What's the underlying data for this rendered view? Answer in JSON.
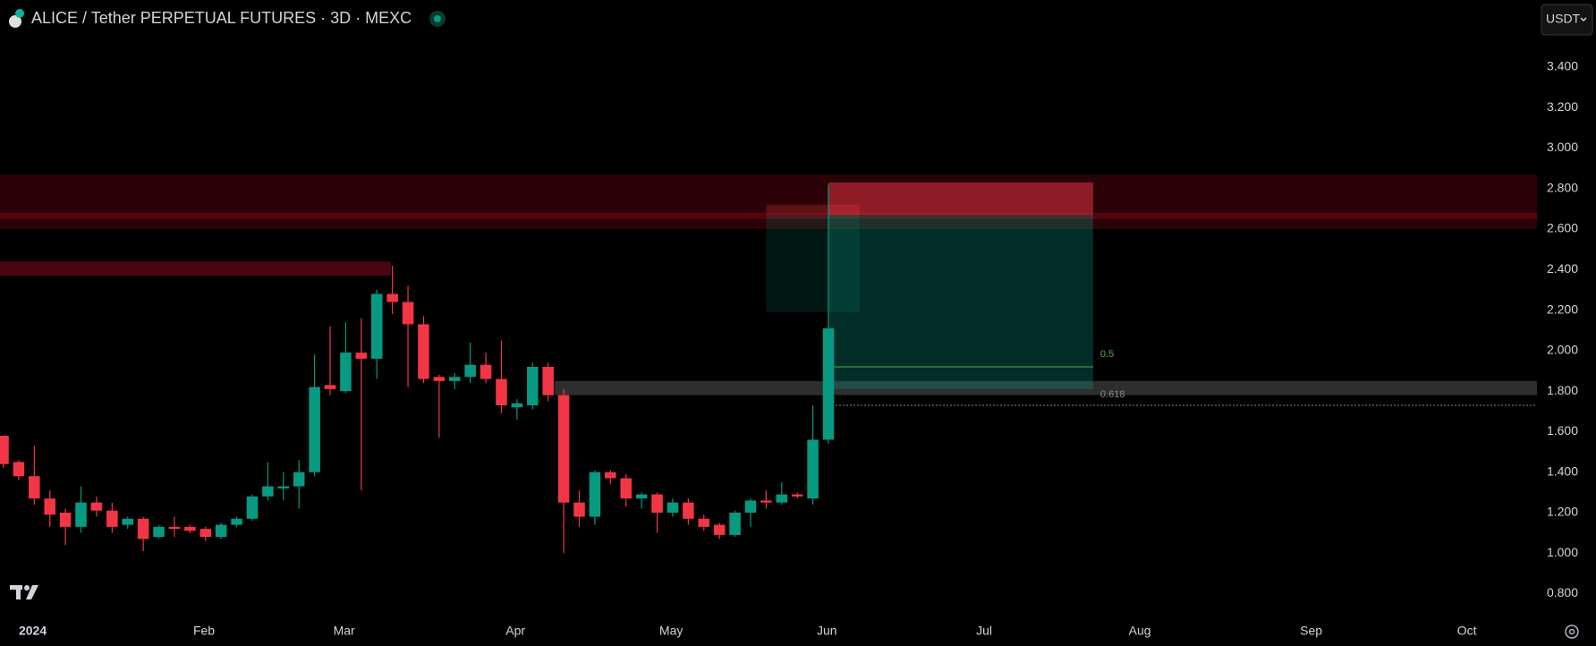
{
  "header": {
    "title": "ALICE / Tether PERPETUAL FUTURES · 3D · MEXC",
    "currency": "USDT"
  },
  "chart_data": {
    "type": "candlestick",
    "x": [
      0,
      1,
      2,
      3,
      4,
      5,
      6,
      7,
      8,
      9,
      10,
      11,
      12,
      13,
      14,
      15,
      16,
      17,
      18,
      19,
      20,
      21,
      22,
      23,
      24,
      25,
      26,
      27,
      28,
      29,
      30,
      31,
      32,
      33,
      34,
      35,
      36,
      37,
      38,
      39,
      40,
      41,
      42,
      43,
      44,
      45,
      46,
      47,
      48,
      49,
      50,
      51,
      52,
      53
    ],
    "open": [
      1.58,
      1.45,
      1.38,
      1.27,
      1.2,
      1.13,
      1.25,
      1.21,
      1.14,
      1.17,
      1.08,
      1.13,
      1.13,
      1.12,
      1.08,
      1.14,
      1.17,
      1.28,
      1.32,
      1.33,
      1.4,
      1.83,
      1.8,
      1.99,
      1.96,
      2.28,
      2.24,
      2.13,
      1.87,
      1.85,
      1.87,
      1.93,
      1.86,
      1.72,
      1.73,
      1.92,
      1.78,
      1.25,
      1.18,
      1.4,
      1.37,
      1.27,
      1.29,
      1.2,
      1.25,
      1.17,
      1.14,
      1.09,
      1.2,
      1.26,
      1.25,
      1.29,
      1.27,
      1.56
    ],
    "high": [
      1.58,
      1.46,
      1.53,
      1.31,
      1.22,
      1.33,
      1.28,
      1.25,
      1.18,
      1.18,
      1.14,
      1.18,
      1.14,
      1.13,
      1.15,
      1.18,
      1.29,
      1.45,
      1.4,
      1.46,
      1.98,
      2.12,
      2.14,
      2.16,
      2.3,
      2.42,
      2.32,
      2.17,
      1.88,
      1.89,
      2.04,
      1.99,
      2.05,
      1.76,
      1.94,
      1.94,
      1.81,
      1.31,
      1.41,
      1.41,
      1.39,
      1.3,
      1.3,
      1.27,
      1.27,
      1.19,
      1.15,
      1.21,
      1.27,
      1.31,
      1.35,
      1.3,
      1.73,
      2.82
    ],
    "low": [
      1.42,
      1.36,
      1.24,
      1.13,
      1.04,
      1.1,
      1.18,
      1.1,
      1.12,
      1.01,
      1.07,
      1.08,
      1.1,
      1.06,
      1.07,
      1.13,
      1.16,
      1.26,
      1.26,
      1.22,
      1.38,
      1.78,
      1.79,
      1.31,
      1.86,
      2.18,
      1.82,
      1.84,
      1.57,
      1.81,
      1.84,
      1.84,
      1.69,
      1.66,
      1.71,
      1.75,
      1.0,
      1.13,
      1.14,
      1.34,
      1.23,
      1.22,
      1.1,
      1.18,
      1.14,
      1.11,
      1.07,
      1.08,
      1.13,
      1.22,
      1.24,
      1.27,
      1.24,
      1.54
    ],
    "close": [
      1.44,
      1.38,
      1.27,
      1.19,
      1.13,
      1.25,
      1.21,
      1.13,
      1.17,
      1.07,
      1.13,
      1.12,
      1.11,
      1.08,
      1.14,
      1.17,
      1.28,
      1.33,
      1.33,
      1.4,
      1.82,
      1.81,
      1.99,
      1.96,
      2.28,
      2.24,
      2.13,
      1.86,
      1.85,
      1.87,
      1.93,
      1.86,
      1.73,
      1.74,
      1.92,
      1.78,
      1.25,
      1.18,
      1.4,
      1.37,
      1.27,
      1.29,
      1.2,
      1.25,
      1.17,
      1.13,
      1.09,
      1.2,
      1.26,
      1.25,
      1.29,
      1.28,
      1.56,
      2.11
    ],
    "up_color": "#089981",
    "down_color": "#f23645",
    "xlim": [
      -0.2,
      98.5
    ],
    "xticks": [
      {
        "value": 1.9,
        "label": "2024"
      },
      {
        "value": 12.9,
        "label": "Feb"
      },
      {
        "value": 21.9,
        "label": "Mar"
      },
      {
        "value": 32.9,
        "label": "Apr"
      },
      {
        "value": 42.9,
        "label": "May"
      },
      {
        "value": 52.9,
        "label": "Jun"
      },
      {
        "value": 63.0,
        "label": "Jul"
      },
      {
        "value": 73.0,
        "label": "Aug"
      },
      {
        "value": 84.0,
        "label": "Sep"
      },
      {
        "value": 94.0,
        "label": "Oct"
      }
    ],
    "ylim": [
      0.714,
      3.541
    ],
    "yticks": [
      {
        "value": 0.8,
        "label": "0.800"
      },
      {
        "value": 1.0,
        "label": "1.000"
      },
      {
        "value": 1.2,
        "label": "1.200"
      },
      {
        "value": 1.4,
        "label": "1.400"
      },
      {
        "value": 1.6,
        "label": "1.600"
      },
      {
        "value": 1.8,
        "label": "1.800"
      },
      {
        "value": 2.0,
        "label": "2.000"
      },
      {
        "value": 2.2,
        "label": "2.200"
      },
      {
        "value": 2.4,
        "label": "2.400"
      },
      {
        "value": 2.6,
        "label": "2.600"
      },
      {
        "value": 2.8,
        "label": "2.800"
      },
      {
        "value": 3.0,
        "label": "3.000"
      },
      {
        "value": 3.2,
        "label": "3.200"
      },
      {
        "value": 3.4,
        "label": "3.400"
      }
    ],
    "zones": [
      {
        "from": 2.6,
        "to": 2.87,
        "start": -0.2,
        "end": 98.5,
        "color": "#2b0207"
      },
      {
        "from": 2.65,
        "to": 2.68,
        "start": -0.2,
        "end": 98.5,
        "color": "#55050f"
      },
      {
        "from": 2.37,
        "to": 2.44,
        "start": -0.2,
        "end": 24.9,
        "color": "#4a0610"
      },
      {
        "from": 1.78,
        "to": 1.85,
        "start": 35.4,
        "end": 98.5,
        "color": "#2e2e2e"
      }
    ],
    "positions": [
      {
        "entry": 2.67,
        "stop": 2.72,
        "target": 2.19,
        "start": 49,
        "end": 55
      },
      {
        "entry": 2.67,
        "stop": 2.83,
        "target": 1.81,
        "start": 53,
        "end": 70
      }
    ],
    "fib_levels": [
      {
        "label": "0.5",
        "price": 1.92,
        "start": 53,
        "end": 70,
        "color": "#4caf50"
      },
      {
        "label": "0.618",
        "price": 1.73,
        "start": 53,
        "end": 98.5,
        "color": "#8a8a8a"
      }
    ]
  }
}
